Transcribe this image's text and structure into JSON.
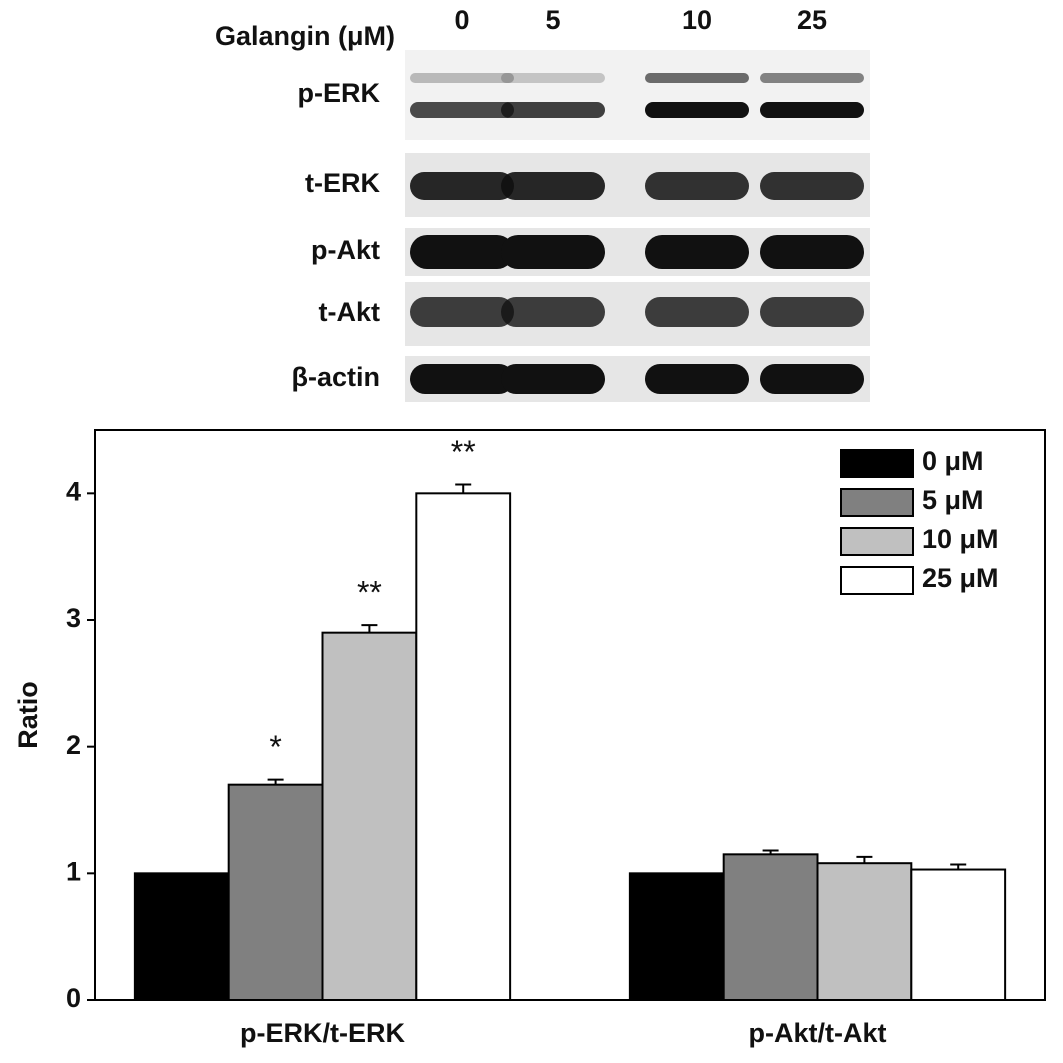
{
  "blot": {
    "header": "Galangin (μM)",
    "lanes": [
      "0",
      "5",
      "10",
      "25"
    ],
    "rows": [
      "p-ERK",
      "t-ERK",
      "p-Akt",
      "t-Akt",
      "β-actin"
    ]
  },
  "chart_data": {
    "type": "bar",
    "ylabel": "Ratio",
    "categories": [
      "p-ERK/t-ERK",
      "p-Akt/t-Akt"
    ],
    "ylim": [
      0,
      4.5
    ],
    "yticks": [
      0,
      1,
      2,
      3,
      4
    ],
    "legend": "upper right",
    "series": [
      {
        "name": "0 μM",
        "color": "#000000",
        "values": [
          1,
          1
        ]
      },
      {
        "name": "5 μM",
        "color": "#808080",
        "values": [
          1.7,
          1.15
        ],
        "errors": [
          0.04,
          0.03
        ],
        "annotations": [
          "*",
          null
        ]
      },
      {
        "name": "10 μM",
        "color": "#c0c0c0",
        "values": [
          2.9,
          1.08
        ],
        "errors": [
          0.06,
          0.05
        ],
        "annotations": [
          "**",
          null
        ]
      },
      {
        "name": "25 μM",
        "color": "#ffffff",
        "values": [
          4.0,
          1.03
        ],
        "errors": [
          0.07,
          0.04
        ],
        "annotations": [
          "**",
          null
        ]
      }
    ]
  }
}
